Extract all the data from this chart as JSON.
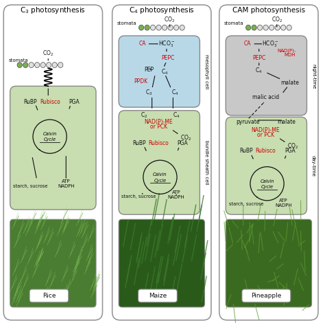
{
  "title_c3": "C$_3$ photosynthesis",
  "title_c4": "C$_4$ photosynthesis",
  "title_cam": "CAM photosynthesis",
  "plant_c3": "Rice",
  "plant_c4": "Maize",
  "plant_cam": "Pineapple",
  "bg_color": "#ffffff",
  "cell_green": "#c8ddb0",
  "cell_blue": "#b8d8e8",
  "cell_gray": "#c8c8c8",
  "red_color": "#cc0000",
  "black_color": "#111111",
  "border_color": "#888888",
  "label_nighttime": "night-time",
  "label_daytime": "day-time",
  "label_mesophyll": "mesophyll cell",
  "label_bundle": "bundle sheath cell",
  "fig_w": 4.74,
  "fig_h": 4.73,
  "dpi": 100
}
